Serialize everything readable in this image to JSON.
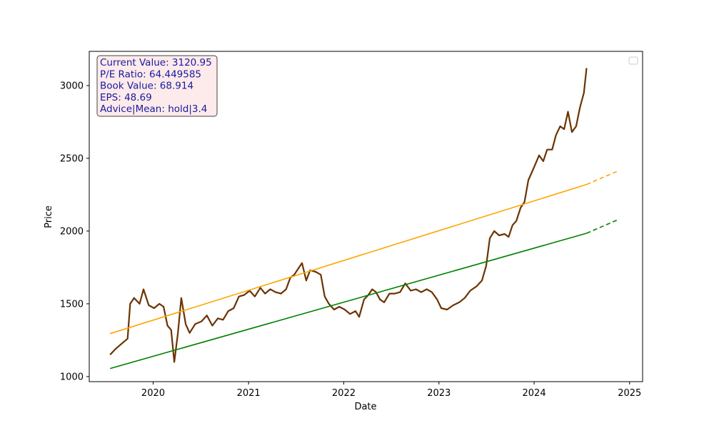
{
  "chart_data": {
    "type": "line",
    "title": "",
    "xlabel": "Date",
    "ylabel": "Price",
    "xlim": [
      "2019-05-01",
      "2025-02-20"
    ],
    "ylim": [
      965,
      3235
    ],
    "x_ticks": [
      "2020",
      "2021",
      "2022",
      "2023",
      "2024",
      "2025"
    ],
    "y_ticks": [
      1000,
      1500,
      2000,
      2500,
      3000
    ],
    "grid": false,
    "legend": {
      "placement": "top-right",
      "entries": []
    },
    "info_box": {
      "lines": [
        "Current Value: 3120.95",
        "P/E Ratio: 64.449585",
        "Book Value: 68.914",
        "EPS: 48.69",
        "Advice|Mean: hold|3.4"
      ],
      "background": "#fdeaea",
      "text_color": "#1a1aa0"
    },
    "series": [
      {
        "color": "#6b3300",
        "style": "solid",
        "points": [
          [
            "2019-07-20",
            1150
          ],
          [
            "2019-08-10",
            1190
          ],
          [
            "2019-09-05",
            1230
          ],
          [
            "2019-09-25",
            1260
          ],
          [
            "2019-10-05",
            1500
          ],
          [
            "2019-10-20",
            1540
          ],
          [
            "2019-11-10",
            1500
          ],
          [
            "2019-11-25",
            1600
          ],
          [
            "2019-12-15",
            1490
          ],
          [
            "2020-01-05",
            1470
          ],
          [
            "2020-01-25",
            1500
          ],
          [
            "2020-02-10",
            1480
          ],
          [
            "2020-02-25",
            1350
          ],
          [
            "2020-03-10",
            1320
          ],
          [
            "2020-03-22",
            1100
          ],
          [
            "2020-04-05",
            1300
          ],
          [
            "2020-04-18",
            1540
          ],
          [
            "2020-05-05",
            1360
          ],
          [
            "2020-05-20",
            1300
          ],
          [
            "2020-06-10",
            1360
          ],
          [
            "2020-07-05",
            1380
          ],
          [
            "2020-07-25",
            1420
          ],
          [
            "2020-08-15",
            1350
          ],
          [
            "2020-09-05",
            1400
          ],
          [
            "2020-09-25",
            1390
          ],
          [
            "2020-10-15",
            1450
          ],
          [
            "2020-11-05",
            1470
          ],
          [
            "2020-11-25",
            1550
          ],
          [
            "2020-12-15",
            1560
          ],
          [
            "2021-01-05",
            1590
          ],
          [
            "2021-01-25",
            1550
          ],
          [
            "2021-02-15",
            1610
          ],
          [
            "2021-03-05",
            1570
          ],
          [
            "2021-03-25",
            1600
          ],
          [
            "2021-04-15",
            1580
          ],
          [
            "2021-05-05",
            1570
          ],
          [
            "2021-05-25",
            1600
          ],
          [
            "2021-06-10",
            1680
          ],
          [
            "2021-06-25",
            1700
          ],
          [
            "2021-07-10",
            1740
          ],
          [
            "2021-07-25",
            1780
          ],
          [
            "2021-08-10",
            1660
          ],
          [
            "2021-08-25",
            1730
          ],
          [
            "2021-09-15",
            1720
          ],
          [
            "2021-10-05",
            1700
          ],
          [
            "2021-10-20",
            1550
          ],
          [
            "2021-11-05",
            1500
          ],
          [
            "2021-11-25",
            1460
          ],
          [
            "2021-12-15",
            1480
          ],
          [
            "2022-01-05",
            1460
          ],
          [
            "2022-01-25",
            1430
          ],
          [
            "2022-02-15",
            1450
          ],
          [
            "2022-03-01",
            1410
          ],
          [
            "2022-03-20",
            1530
          ],
          [
            "2022-04-05",
            1560
          ],
          [
            "2022-04-20",
            1600
          ],
          [
            "2022-05-05",
            1580
          ],
          [
            "2022-05-20",
            1530
          ],
          [
            "2022-06-05",
            1510
          ],
          [
            "2022-06-25",
            1570
          ],
          [
            "2022-07-15",
            1570
          ],
          [
            "2022-08-05",
            1580
          ],
          [
            "2022-08-25",
            1640
          ],
          [
            "2022-09-15",
            1590
          ],
          [
            "2022-10-05",
            1600
          ],
          [
            "2022-10-25",
            1580
          ],
          [
            "2022-11-15",
            1600
          ],
          [
            "2022-12-05",
            1580
          ],
          [
            "2022-12-25",
            1530
          ],
          [
            "2023-01-10",
            1470
          ],
          [
            "2023-02-01",
            1460
          ],
          [
            "2023-02-25",
            1490
          ],
          [
            "2023-03-20",
            1510
          ],
          [
            "2023-04-10",
            1540
          ],
          [
            "2023-05-01",
            1590
          ],
          [
            "2023-05-25",
            1620
          ],
          [
            "2023-06-15",
            1660
          ],
          [
            "2023-07-01",
            1760
          ],
          [
            "2023-07-15",
            1950
          ],
          [
            "2023-08-01",
            2000
          ],
          [
            "2023-08-20",
            1970
          ],
          [
            "2023-09-10",
            1980
          ],
          [
            "2023-09-25",
            1960
          ],
          [
            "2023-10-10",
            2040
          ],
          [
            "2023-10-25",
            2070
          ],
          [
            "2023-11-10",
            2160
          ],
          [
            "2023-11-25",
            2200
          ],
          [
            "2023-12-10",
            2350
          ],
          [
            "2024-01-01",
            2440
          ],
          [
            "2024-01-20",
            2520
          ],
          [
            "2024-02-05",
            2480
          ],
          [
            "2024-02-20",
            2560
          ],
          [
            "2024-03-10",
            2560
          ],
          [
            "2024-03-25",
            2660
          ],
          [
            "2024-04-10",
            2720
          ],
          [
            "2024-04-25",
            2700
          ],
          [
            "2024-05-10",
            2820
          ],
          [
            "2024-05-25",
            2680
          ],
          [
            "2024-06-10",
            2720
          ],
          [
            "2024-06-25",
            2850
          ],
          [
            "2024-07-10",
            2950
          ],
          [
            "2024-07-20",
            3120
          ]
        ]
      },
      {
        "color": "#ffa500",
        "style": "solid",
        "points": [
          [
            "2019-07-20",
            1295
          ],
          [
            "2024-07-20",
            2320
          ]
        ]
      },
      {
        "color": "#ffa500",
        "style": "dashed",
        "points": [
          [
            "2024-07-20",
            2320
          ],
          [
            "2024-11-20",
            2415
          ]
        ]
      },
      {
        "color": "#008000",
        "style": "solid",
        "points": [
          [
            "2019-07-20",
            1055
          ],
          [
            "2024-07-20",
            1985
          ]
        ]
      },
      {
        "color": "#008000",
        "style": "dashed",
        "points": [
          [
            "2024-07-20",
            1985
          ],
          [
            "2024-11-20",
            2080
          ]
        ]
      }
    ]
  }
}
